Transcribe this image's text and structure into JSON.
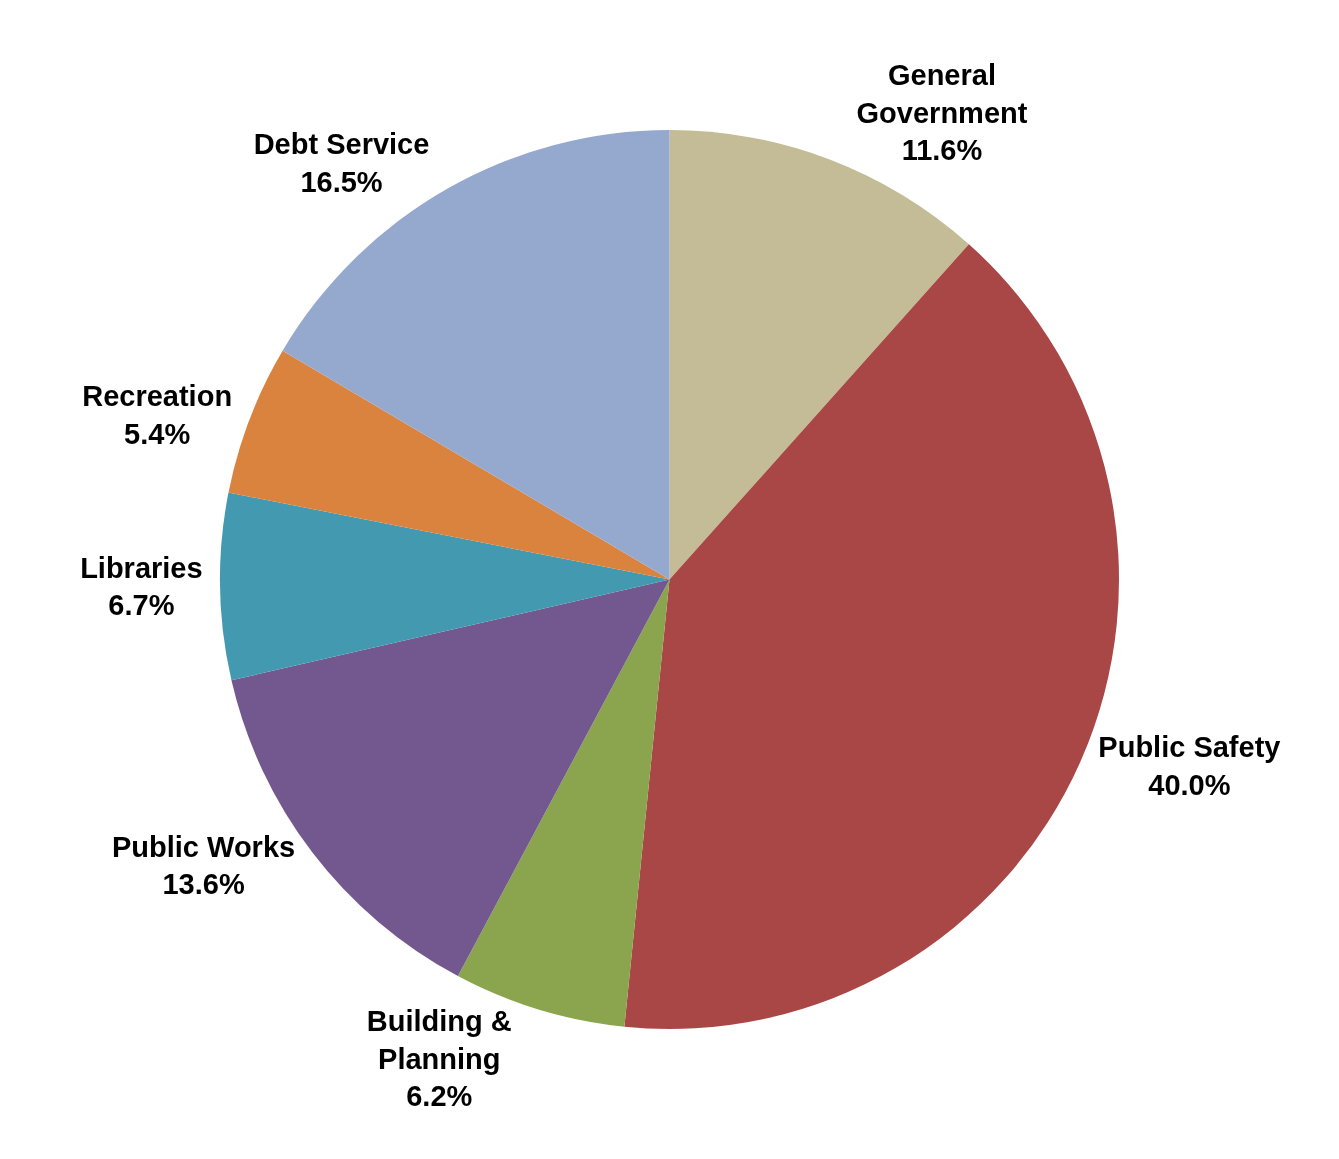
{
  "chart_data": {
    "type": "pie",
    "categories": [
      "General Government",
      "Public Safety",
      "Building & Planning",
      "Public Works",
      "Libraries",
      "Recreation",
      "Debt Service"
    ],
    "values": [
      11.6,
      40.0,
      6.2,
      13.6,
      6.7,
      5.4,
      16.5
    ],
    "value_labels": [
      "11.6%",
      "40.0%",
      "6.2%",
      "13.6%",
      "6.7%",
      "5.4%",
      "16.5%"
    ],
    "colors": [
      "#c4bc96",
      "#a94646",
      "#8aa54e",
      "#72588e",
      "#4299b0",
      "#d9833f",
      "#95a9cf"
    ]
  }
}
